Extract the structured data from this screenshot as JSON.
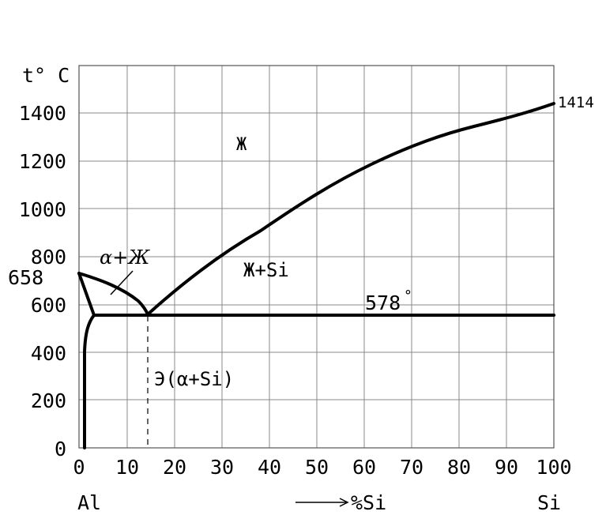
{
  "axes": {
    "y_label": "t° C",
    "x_left_label": "Al",
    "x_right_label": "Si",
    "x_axis_title": "%Si",
    "x_ticks": [
      "0",
      "10",
      "20",
      "30",
      "40",
      "50",
      "60",
      "70",
      "80",
      "90",
      "100"
    ],
    "y_ticks": [
      "0",
      "200",
      "400",
      "600",
      "800",
      "1000",
      "1200",
      "1400"
    ]
  },
  "annotations": {
    "al_melting": "658",
    "si_melting": "1414",
    "eutectic_temp": "578",
    "degree": "°"
  },
  "regions": {
    "liquid": "Ж",
    "alpha_liquid": "α+Ж",
    "liquid_si": "Ж+Si",
    "eutectic": "Э(α+Si)"
  }
}
